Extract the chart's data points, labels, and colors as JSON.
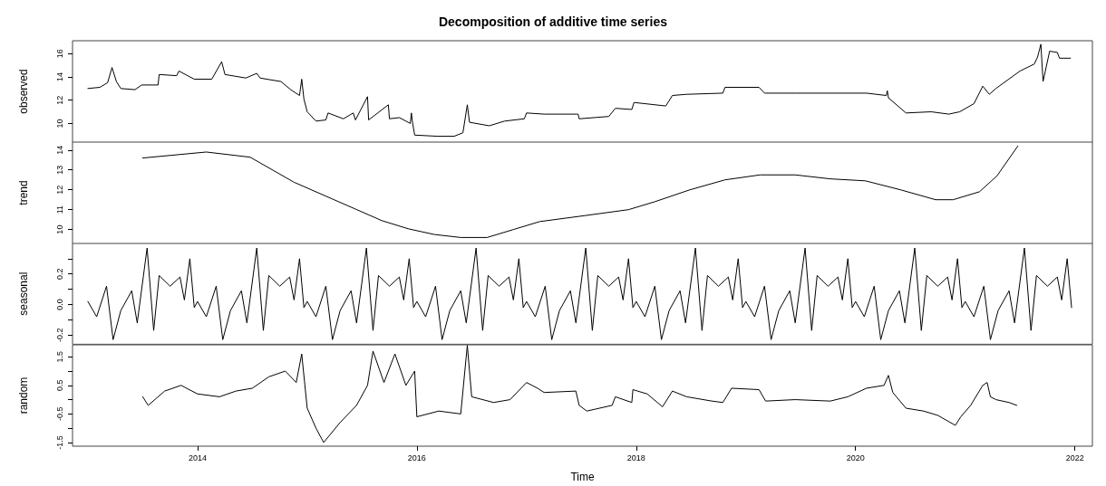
{
  "chart_data": [
    {
      "type": "line",
      "title": "Decomposition of additive time series",
      "ylabel": "observed",
      "color": "#000000",
      "grid": false,
      "tick_labels": "y",
      "xlim": [
        2012.86,
        2022.16
      ],
      "ylim": [
        8.4,
        17.1
      ],
      "yticks": [
        10,
        12,
        14,
        16
      ],
      "x": [
        2013.0,
        2013.11,
        2013.18,
        2013.22,
        2013.26,
        2013.3,
        2013.43,
        2013.49,
        2013.64,
        2013.65,
        2013.81,
        2013.83,
        2013.97,
        2014.13,
        2014.22,
        2014.25,
        2014.44,
        2014.54,
        2014.57,
        2014.63,
        2014.76,
        2014.85,
        2014.93,
        2014.95,
        2014.97,
        2015.0,
        2015.08,
        2015.17,
        2015.19,
        2015.33,
        2015.42,
        2015.44,
        2015.55,
        2015.56,
        2015.74,
        2015.75,
        2015.84,
        2015.94,
        2015.95,
        2015.96,
        2015.98,
        2016.19,
        2016.34,
        2016.42,
        2016.46,
        2016.48,
        2016.66,
        2016.8,
        2016.98,
        2017.0,
        2017.16,
        2017.45,
        2017.47,
        2017.48,
        2017.75,
        2017.81,
        2017.96,
        2017.98,
        2018.27,
        2018.33,
        2018.46,
        2018.79,
        2018.81,
        2019.12,
        2019.17,
        2019.45,
        2020.1,
        2020.28,
        2020.29,
        2020.3,
        2020.46,
        2020.69,
        2020.85,
        2020.95,
        2021.08,
        2021.16,
        2021.22,
        2021.28,
        2021.5,
        2021.63,
        2021.66,
        2021.69,
        2021.71,
        2021.77,
        2021.84,
        2021.86,
        2021.96
      ],
      "values": [
        13.0,
        13.1,
        13.5,
        14.8,
        13.6,
        13.0,
        12.9,
        13.3,
        13.3,
        14.2,
        14.1,
        14.5,
        13.8,
        13.8,
        15.3,
        14.2,
        13.9,
        14.3,
        13.9,
        13.8,
        13.6,
        12.9,
        12.4,
        13.8,
        12.1,
        11.0,
        10.2,
        10.3,
        10.9,
        10.4,
        10.9,
        10.3,
        12.3,
        10.3,
        11.6,
        10.4,
        10.5,
        10.0,
        10.9,
        10.1,
        9.0,
        8.9,
        8.9,
        9.2,
        11.6,
        10.1,
        9.8,
        10.2,
        10.4,
        10.9,
        10.8,
        10.8,
        10.8,
        10.4,
        10.6,
        11.3,
        11.2,
        11.8,
        11.5,
        12.4,
        12.5,
        12.6,
        13.1,
        13.1,
        12.6,
        12.6,
        12.6,
        12.4,
        12.8,
        12.2,
        10.9,
        11.0,
        10.8,
        11.0,
        11.7,
        13.2,
        12.5,
        13.0,
        14.5,
        15.1,
        15.7,
        16.8,
        13.6,
        16.2,
        16.1,
        15.6,
        15.6
      ]
    },
    {
      "type": "line",
      "ylabel": "trend",
      "color": "#000000",
      "grid": false,
      "tick_labels": "y",
      "xlim": [
        2012.86,
        2022.16
      ],
      "ylim": [
        9.3,
        14.4
      ],
      "yticks": [
        10,
        11,
        12,
        13,
        14
      ],
      "x": [
        2013.5,
        2014.08,
        2014.48,
        2014.88,
        2015.44,
        2015.68,
        2015.92,
        2016.16,
        2016.4,
        2016.64,
        2016.88,
        2017.12,
        2017.53,
        2017.93,
        2018.17,
        2018.49,
        2018.81,
        2019.13,
        2019.45,
        2019.77,
        2020.09,
        2020.41,
        2020.73,
        2020.89,
        2021.13,
        2021.29,
        2021.48
      ],
      "values": [
        13.6,
        13.9,
        13.64,
        12.38,
        11.03,
        10.45,
        10.04,
        9.75,
        9.6,
        9.6,
        10.0,
        10.4,
        10.7,
        11.0,
        11.4,
        12.0,
        12.5,
        12.75,
        12.75,
        12.55,
        12.45,
        12.0,
        11.5,
        11.5,
        11.9,
        12.7,
        14.2
      ]
    },
    {
      "type": "line",
      "ylabel": "seasonal",
      "color": "#000000",
      "grid": false,
      "tick_labels": "y",
      "xlim": [
        2012.86,
        2022.16
      ],
      "ylim": [
        -0.26,
        0.4
      ],
      "yticks": [
        {
          "value": -0.2,
          "label": "-0.2"
        },
        {
          "value": -0.1,
          "label": null
        },
        {
          "value": 0,
          "label": "0.0"
        },
        {
          "value": 0.1,
          "label": null
        },
        {
          "value": 0.2,
          "label": "0.2"
        },
        {
          "value": 0.3,
          "label": null
        }
      ],
      "x": [
        2013.0,
        2013.08,
        2013.17,
        2013.23,
        2013.3,
        2013.4,
        2013.45,
        2013.54,
        2013.6,
        2013.65,
        2013.75,
        2013.84,
        2013.88,
        2013.93,
        2013.97,
        2014.0,
        2014.08,
        2014.17,
        2014.23,
        2014.3,
        2014.4,
        2014.45,
        2014.54,
        2014.6,
        2014.65,
        2014.75,
        2014.84,
        2014.88,
        2014.93,
        2014.97,
        2015.0,
        2015.08,
        2015.17,
        2015.23,
        2015.3,
        2015.4,
        2015.45,
        2015.54,
        2015.6,
        2015.65,
        2015.75,
        2015.84,
        2015.88,
        2015.93,
        2015.97,
        2016.0,
        2016.08,
        2016.17,
        2016.23,
        2016.3,
        2016.4,
        2016.45,
        2016.54,
        2016.6,
        2016.65,
        2016.75,
        2016.84,
        2016.88,
        2016.93,
        2016.97,
        2017.0,
        2017.08,
        2017.17,
        2017.23,
        2017.3,
        2017.4,
        2017.45,
        2017.54,
        2017.6,
        2017.65,
        2017.75,
        2017.84,
        2017.88,
        2017.93,
        2017.97,
        2018.0,
        2018.08,
        2018.17,
        2018.23,
        2018.3,
        2018.4,
        2018.45,
        2018.54,
        2018.6,
        2018.65,
        2018.75,
        2018.84,
        2018.88,
        2018.93,
        2018.97,
        2019.0,
        2019.08,
        2019.17,
        2019.23,
        2019.3,
        2019.4,
        2019.45,
        2019.54,
        2019.6,
        2019.65,
        2019.75,
        2019.84,
        2019.88,
        2019.93,
        2019.97,
        2020.0,
        2020.08,
        2020.17,
        2020.23,
        2020.3,
        2020.4,
        2020.45,
        2020.54,
        2020.6,
        2020.65,
        2020.75,
        2020.84,
        2020.88,
        2020.93,
        2020.97,
        2021.0,
        2021.08,
        2021.17,
        2021.23,
        2021.3,
        2021.4,
        2021.45,
        2021.54,
        2021.6,
        2021.65,
        2021.75,
        2021.84,
        2021.88,
        2021.93,
        2021.97
      ],
      "values": [
        0.02,
        -0.08,
        0.12,
        -0.23,
        -0.04,
        0.09,
        -0.12,
        0.37,
        -0.17,
        0.19,
        0.12,
        0.18,
        0.03,
        0.3,
        -0.02,
        0.02,
        -0.08,
        0.12,
        -0.23,
        -0.04,
        0.09,
        -0.12,
        0.37,
        -0.17,
        0.19,
        0.12,
        0.18,
        0.03,
        0.3,
        -0.02,
        0.02,
        -0.08,
        0.12,
        -0.23,
        -0.04,
        0.09,
        -0.12,
        0.37,
        -0.17,
        0.19,
        0.12,
        0.18,
        0.03,
        0.3,
        -0.02,
        0.02,
        -0.08,
        0.12,
        -0.23,
        -0.04,
        0.09,
        -0.12,
        0.37,
        -0.17,
        0.19,
        0.12,
        0.18,
        0.03,
        0.3,
        -0.02,
        0.02,
        -0.08,
        0.12,
        -0.23,
        -0.04,
        0.09,
        -0.12,
        0.37,
        -0.17,
        0.19,
        0.12,
        0.18,
        0.03,
        0.3,
        -0.02,
        0.02,
        -0.08,
        0.12,
        -0.23,
        -0.04,
        0.09,
        -0.12,
        0.37,
        -0.17,
        0.19,
        0.12,
        0.18,
        0.03,
        0.3,
        -0.02,
        0.02,
        -0.08,
        0.12,
        -0.23,
        -0.04,
        0.09,
        -0.12,
        0.37,
        -0.17,
        0.19,
        0.12,
        0.18,
        0.03,
        0.3,
        -0.02,
        0.02,
        -0.08,
        0.12,
        -0.23,
        -0.04,
        0.09,
        -0.12,
        0.37,
        -0.17,
        0.19,
        0.12,
        0.18,
        0.03,
        0.3,
        -0.02,
        0.02,
        -0.08,
        0.12,
        -0.23,
        -0.04,
        0.09,
        -0.12,
        0.37,
        -0.17,
        0.19,
        0.12,
        0.18,
        0.03,
        0.3,
        -0.02
      ]
    },
    {
      "type": "line",
      "ylabel": "random",
      "xlabel": "Time",
      "color": "#000000",
      "grid": false,
      "xlim": [
        2012.86,
        2022.16
      ],
      "xticks": [
        2014,
        2016,
        2018,
        2020,
        2022
      ],
      "ylim": [
        -1.63,
        1.92
      ],
      "yticks": [
        {
          "value": -1.5,
          "label": "-1.5"
        },
        {
          "value": -1,
          "label": null
        },
        {
          "value": -0.5,
          "label": "-0.5"
        },
        {
          "value": 0,
          "label": null
        },
        {
          "value": 0.5,
          "label": "0.5"
        },
        {
          "value": 1,
          "label": null
        },
        {
          "value": 1.5,
          "label": "1.5"
        }
      ],
      "x": [
        2013.5,
        2013.55,
        2013.7,
        2013.85,
        2014.0,
        2014.2,
        2014.35,
        2014.5,
        2014.65,
        2014.8,
        2014.9,
        2014.95,
        2015.0,
        2015.08,
        2015.15,
        2015.3,
        2015.45,
        2015.55,
        2015.6,
        2015.7,
        2015.8,
        2015.9,
        2015.98,
        2016.0,
        2016.2,
        2016.4,
        2016.46,
        2016.5,
        2016.7,
        2016.85,
        2017.0,
        2017.1,
        2017.16,
        2017.45,
        2017.48,
        2017.55,
        2017.78,
        2017.81,
        2017.96,
        2017.97,
        2018.1,
        2018.24,
        2018.33,
        2018.46,
        2018.69,
        2018.79,
        2018.87,
        2019.12,
        2019.18,
        2019.45,
        2019.77,
        2019.93,
        2020.1,
        2020.26,
        2020.3,
        2020.34,
        2020.46,
        2020.62,
        2020.75,
        2020.91,
        2020.96,
        2021.05,
        2021.16,
        2021.2,
        2021.23,
        2021.28,
        2021.4,
        2021.47
      ],
      "values": [
        0.1,
        -0.2,
        0.3,
        0.5,
        0.2,
        0.1,
        0.3,
        0.4,
        0.8,
        1.0,
        0.6,
        1.6,
        -0.3,
        -1.0,
        -1.5,
        -0.8,
        -0.2,
        0.5,
        1.7,
        0.6,
        1.6,
        0.5,
        1.0,
        -0.6,
        -0.4,
        -0.5,
        1.9,
        0.1,
        -0.1,
        0.0,
        0.6,
        0.4,
        0.25,
        0.3,
        -0.2,
        -0.4,
        -0.2,
        0.1,
        -0.1,
        0.35,
        0.2,
        -0.25,
        0.3,
        0.1,
        -0.05,
        -0.1,
        0.4,
        0.35,
        -0.05,
        0.0,
        -0.05,
        0.1,
        0.4,
        0.5,
        0.85,
        0.25,
        -0.3,
        -0.4,
        -0.55,
        -0.9,
        -0.6,
        -0.2,
        0.5,
        0.6,
        0.1,
        0.0,
        -0.1,
        -0.2
      ]
    }
  ]
}
